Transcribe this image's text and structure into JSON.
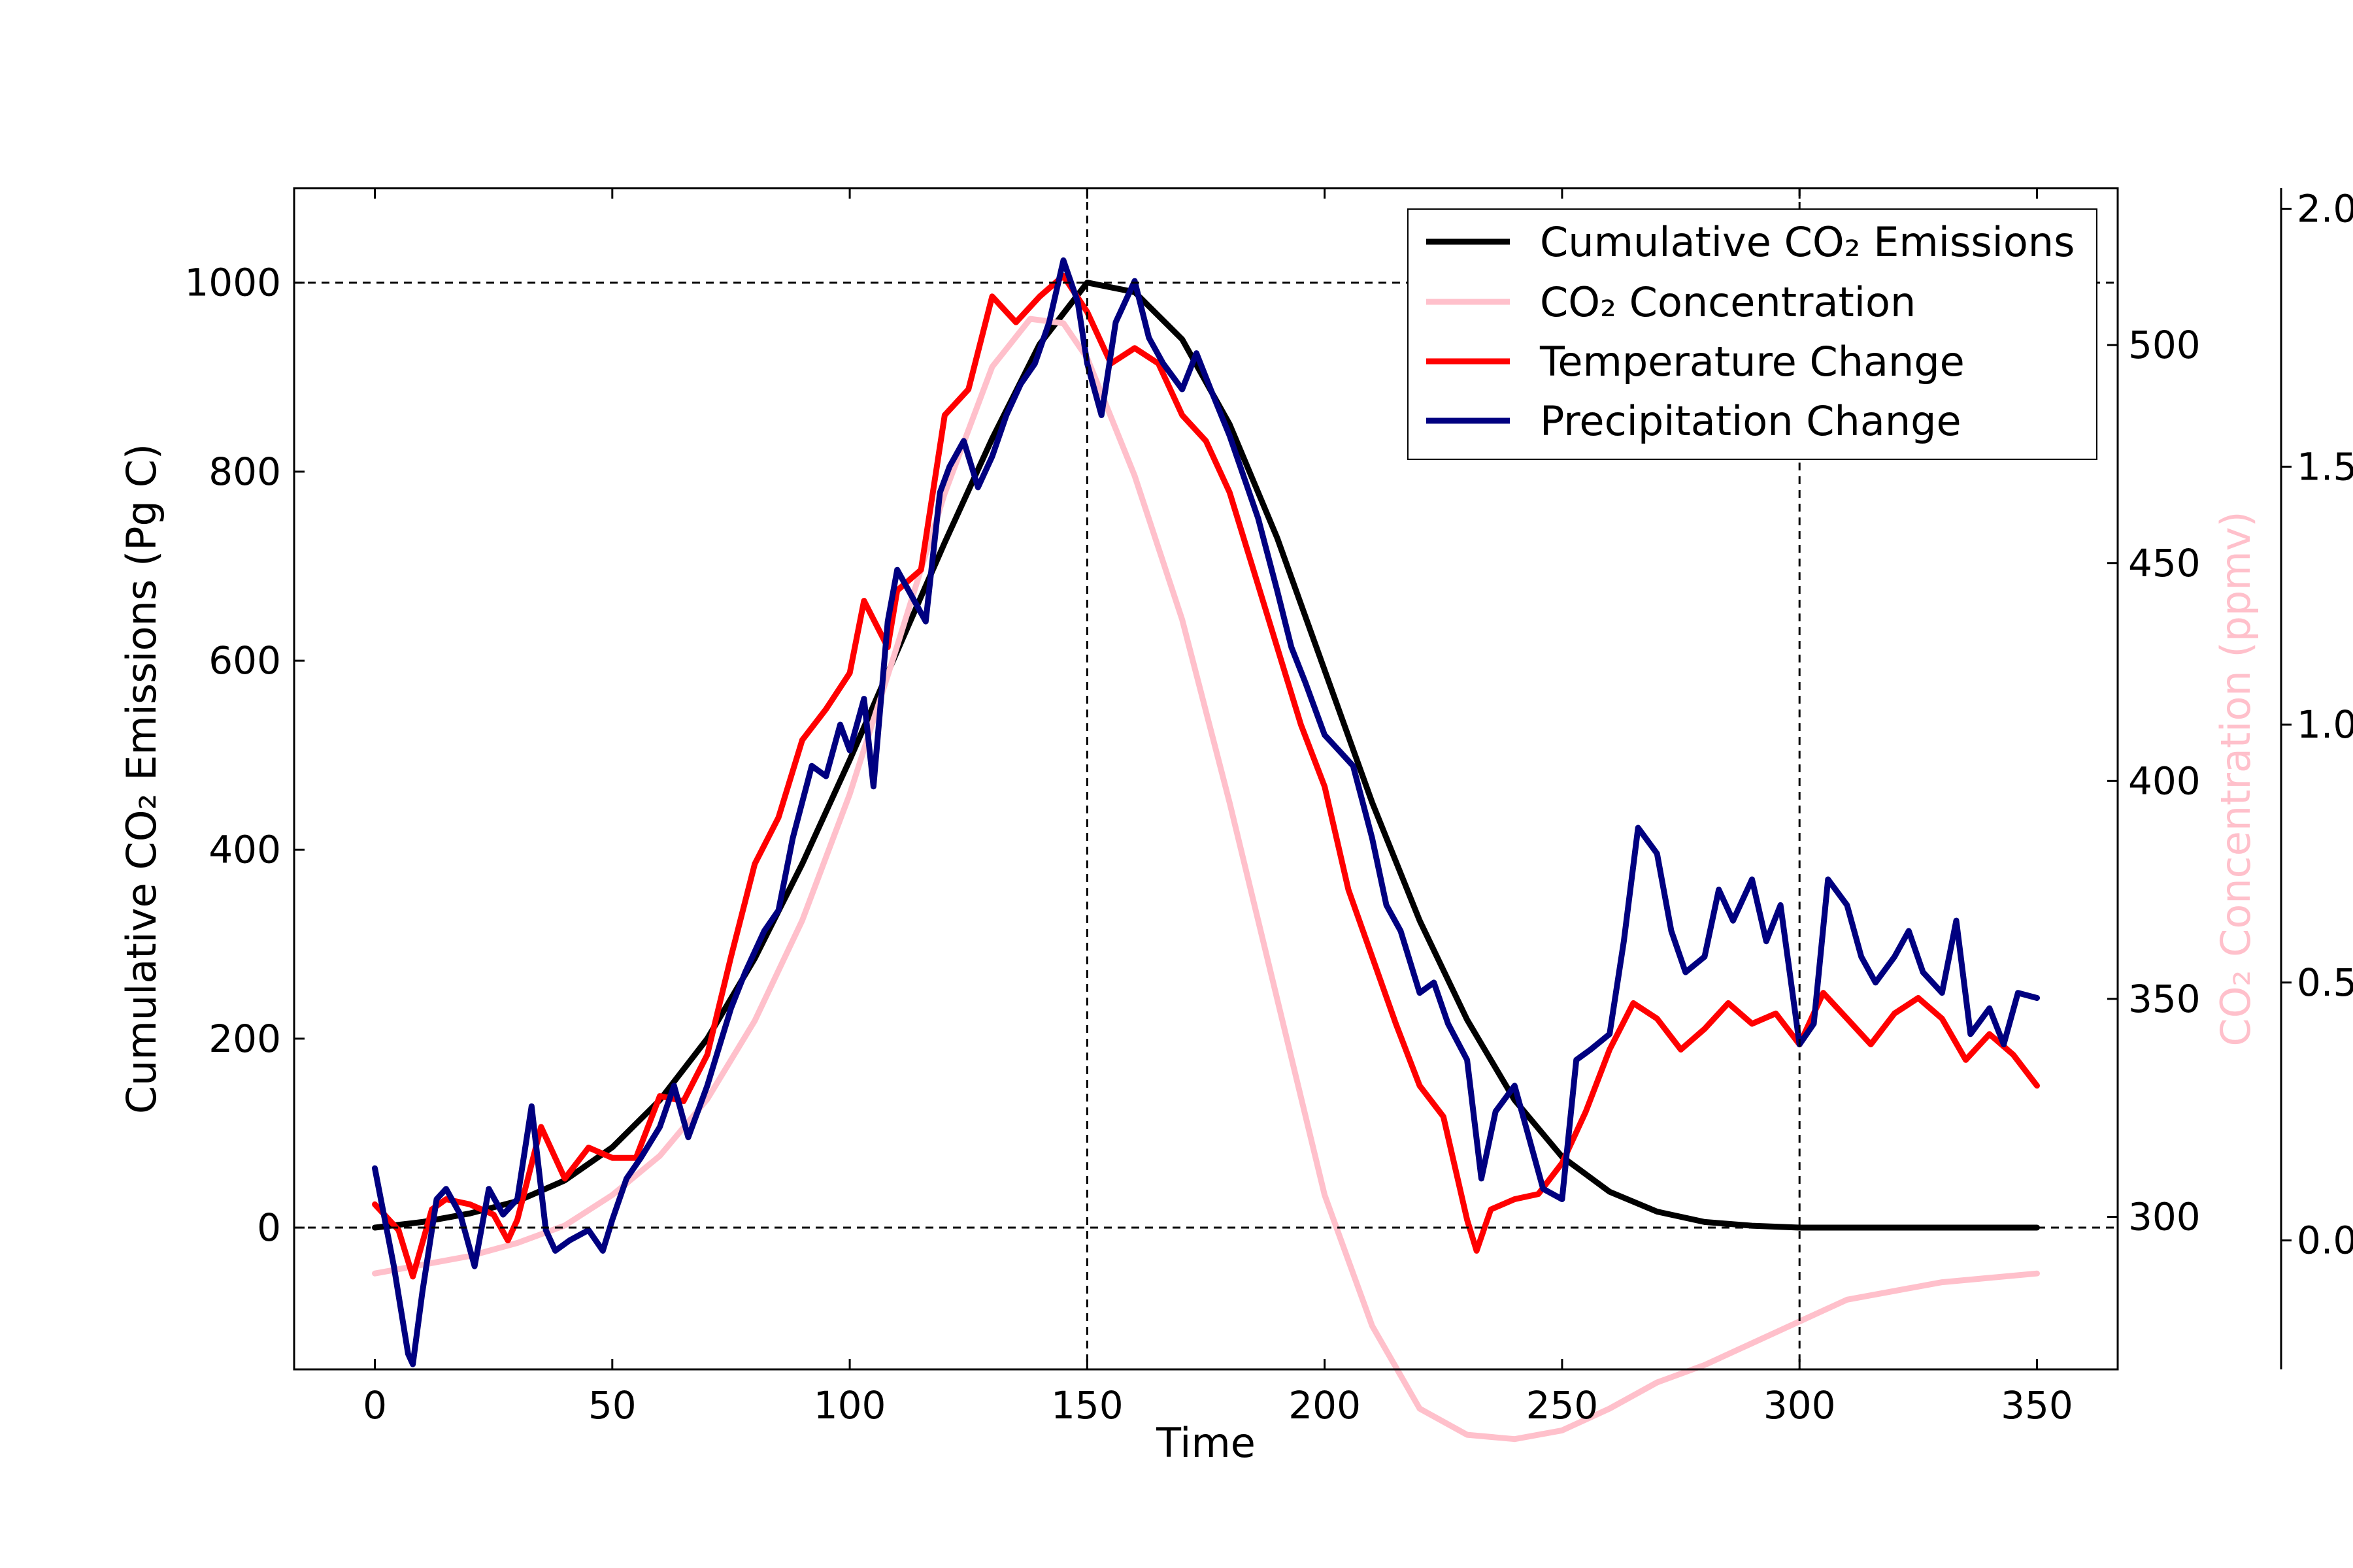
{
  "chart_data": {
    "type": "line",
    "xlabel": "Time",
    "ylabel": "Cumulative CO₂ Emissions (Pg C)",
    "ylabel_right": "CO₂ Concentration (ppmv)",
    "xlim": [
      -17,
      367
    ],
    "ylim": [
      -150,
      1100
    ],
    "ylim_right": [
      265,
      536
    ],
    "ylim_far_right": [
      -0.25,
      2.04
    ],
    "x_ticks": [
      "0",
      "50",
      "100",
      "150",
      "200",
      "250",
      "300",
      "350"
    ],
    "y_ticks": [
      "0",
      "200",
      "400",
      "600",
      "800",
      "1000"
    ],
    "y_ticks_right": [
      "300",
      "350",
      "400",
      "450",
      "500"
    ],
    "y_ticks_far_right": [
      "0.0",
      "0.5",
      "1.0",
      "1.5",
      "2.0"
    ],
    "reference_lines": {
      "x": [
        150,
        300
      ],
      "y": [
        0,
        1000
      ]
    },
    "legend_position": "top-right",
    "grid": false,
    "colors": {
      "emissions": "#000000",
      "concentration": "#ffc0cb",
      "temperature": "#ff0000",
      "precipitation": "#000080"
    },
    "series": [
      {
        "name": "Cumulative CO₂ Emissions",
        "axis": "left",
        "color": "#000000",
        "x": [
          0,
          10,
          20,
          30,
          40,
          50,
          60,
          70,
          80,
          90,
          100,
          110,
          120,
          130,
          140,
          150,
          160,
          170,
          180,
          190,
          200,
          210,
          220,
          230,
          240,
          250,
          260,
          270,
          280,
          290,
          300,
          310,
          320,
          330,
          340,
          350
        ],
        "y": [
          0,
          6,
          15,
          28,
          50,
          85,
          135,
          200,
          285,
          385,
          495,
          610,
          725,
          835,
          935,
          1000,
          990,
          940,
          850,
          730,
          590,
          450,
          325,
          220,
          135,
          75,
          38,
          17,
          6,
          2,
          0,
          0,
          0,
          0,
          0,
          0
        ]
      },
      {
        "name": "CO₂ Concentration",
        "axis": "right",
        "color": "#ffc0cb",
        "x": [
          0,
          10,
          20,
          30,
          40,
          50,
          60,
          70,
          80,
          90,
          100,
          110,
          120,
          130,
          138,
          145,
          150,
          160,
          170,
          180,
          190,
          200,
          210,
          220,
          230,
          240,
          250,
          260,
          270,
          280,
          290,
          300,
          310,
          320,
          330,
          340,
          350
        ],
        "y": [
          287,
          289,
          291,
          294,
          298,
          305,
          314,
          327,
          345,
          368,
          397,
          431,
          466,
          495,
          506,
          505,
          497,
          470,
          437,
          395,
          350,
          305,
          275,
          256,
          250,
          249,
          251,
          256,
          262,
          266,
          271,
          276,
          281,
          283,
          285,
          286,
          287
        ]
      },
      {
        "name": "Temperature Change",
        "axis": "far-right",
        "color": "#ff0000",
        "x": [
          0,
          5,
          8,
          12,
          15,
          20,
          25,
          28,
          30,
          35,
          40,
          45,
          50,
          55,
          60,
          65,
          70,
          75,
          80,
          85,
          90,
          95,
          100,
          103,
          108,
          110,
          115,
          120,
          125,
          130,
          135,
          140,
          145,
          150,
          155,
          160,
          165,
          170,
          175,
          180,
          185,
          190,
          195,
          200,
          205,
          210,
          215,
          220,
          225,
          230,
          232,
          235,
          240,
          245,
          250,
          255,
          260,
          265,
          270,
          275,
          280,
          285,
          290,
          295,
          300,
          305,
          310,
          315,
          320,
          325,
          330,
          335,
          340,
          345,
          350
        ],
        "y": [
          0.07,
          0.02,
          -0.07,
          0.06,
          0.08,
          0.07,
          0.05,
          0.0,
          0.04,
          0.22,
          0.12,
          0.18,
          0.16,
          0.16,
          0.28,
          0.27,
          0.36,
          0.55,
          0.73,
          0.82,
          0.97,
          1.03,
          1.1,
          1.24,
          1.15,
          1.26,
          1.3,
          1.6,
          1.65,
          1.83,
          1.78,
          1.83,
          1.87,
          1.8,
          1.7,
          1.73,
          1.7,
          1.6,
          1.55,
          1.45,
          1.3,
          1.15,
          1.0,
          0.88,
          0.68,
          0.55,
          0.42,
          0.3,
          0.24,
          0.04,
          -0.02,
          0.06,
          0.08,
          0.09,
          0.15,
          0.25,
          0.37,
          0.46,
          0.43,
          0.37,
          0.41,
          0.46,
          0.42,
          0.44,
          0.38,
          0.48,
          0.43,
          0.38,
          0.44,
          0.47,
          0.43,
          0.35,
          0.4,
          0.36,
          0.3
        ]
      },
      {
        "name": "Precipitation Change",
        "axis": "far-right",
        "color": "#000080",
        "x": [
          0,
          4,
          7,
          8,
          10,
          13,
          15,
          18,
          21,
          24,
          27,
          30,
          33,
          36,
          38,
          41,
          45,
          48,
          50,
          53,
          56,
          60,
          63,
          66,
          70,
          72,
          75,
          78,
          82,
          85,
          88,
          92,
          95,
          98,
          100,
          103,
          105,
          108,
          110,
          113,
          116,
          119,
          121,
          124,
          127,
          130,
          133,
          136,
          139,
          142,
          145,
          148,
          150,
          153,
          156,
          160,
          163,
          166,
          170,
          173,
          176,
          180,
          183,
          186,
          190,
          193,
          196,
          200,
          203,
          206,
          210,
          213,
          216,
          220,
          223,
          226,
          230,
          233,
          236,
          240,
          243,
          246,
          250,
          253,
          256,
          260,
          263,
          266,
          270,
          273,
          276,
          280,
          283,
          286,
          290,
          293,
          296,
          300,
          303,
          306,
          310,
          313,
          316,
          320,
          323,
          326,
          330,
          333,
          336,
          340,
          343,
          346,
          350
        ],
        "y": [
          0.14,
          -0.05,
          -0.22,
          -0.24,
          -0.1,
          0.08,
          0.1,
          0.05,
          -0.05,
          0.1,
          0.05,
          0.08,
          0.26,
          0.02,
          -0.02,
          0.0,
          0.02,
          -0.02,
          0.04,
          0.12,
          0.16,
          0.22,
          0.3,
          0.2,
          0.3,
          0.36,
          0.45,
          0.52,
          0.6,
          0.64,
          0.78,
          0.92,
          0.9,
          1.0,
          0.95,
          1.05,
          0.88,
          1.2,
          1.3,
          1.25,
          1.2,
          1.45,
          1.5,
          1.55,
          1.46,
          1.52,
          1.6,
          1.66,
          1.7,
          1.78,
          1.9,
          1.82,
          1.7,
          1.6,
          1.78,
          1.86,
          1.75,
          1.7,
          1.65,
          1.72,
          1.65,
          1.56,
          1.48,
          1.4,
          1.26,
          1.15,
          1.08,
          0.98,
          0.95,
          0.92,
          0.78,
          0.65,
          0.6,
          0.48,
          0.5,
          0.42,
          0.35,
          0.12,
          0.25,
          0.3,
          0.2,
          0.1,
          0.08,
          0.35,
          0.37,
          0.4,
          0.58,
          0.8,
          0.75,
          0.6,
          0.52,
          0.55,
          0.68,
          0.62,
          0.7,
          0.58,
          0.65,
          0.38,
          0.42,
          0.7,
          0.65,
          0.55,
          0.5,
          0.55,
          0.6,
          0.52,
          0.48,
          0.62,
          0.4,
          0.45,
          0.38,
          0.48,
          0.47
        ]
      }
    ]
  }
}
